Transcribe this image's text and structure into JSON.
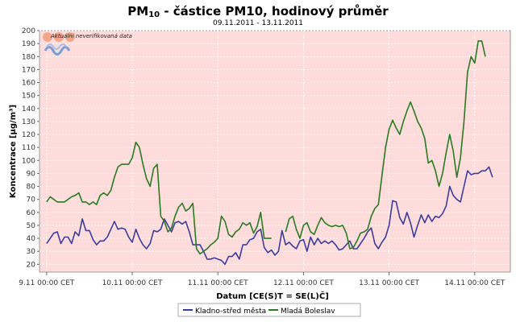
{
  "chart_data": {
    "type": "line",
    "title_main": "PM",
    "title_sub": "10",
    "title_rest": " - částice PM10, hodinový průměr",
    "subtitle": "09.11.2011 - 13.11.2011",
    "xlabel": "Datum [CE(S)T = SE(L)Č]",
    "ylabel": "Koncentrace [µg/m³]",
    "ylim": [
      14,
      200
    ],
    "yticks": [
      20,
      30,
      40,
      50,
      60,
      70,
      80,
      90,
      100,
      110,
      120,
      130,
      140,
      150,
      160,
      170,
      180,
      190,
      200
    ],
    "xlim": [
      -2,
      130
    ],
    "xticks": [
      {
        "hour": 0,
        "label": "9.11 00:00 CET"
      },
      {
        "hour": 24,
        "label": "10.11 00:00 CET"
      },
      {
        "hour": 48,
        "label": "11.11 00:00 CET"
      },
      {
        "hour": 72,
        "label": "12.11 00:00 CET"
      },
      {
        "hour": 96,
        "label": "13.11 00:00 CET"
      },
      {
        "hour": 120,
        "label": "14.11 00:00 CET"
      }
    ],
    "grid": true,
    "background_color": "#ffdcdc",
    "annotation": "Aktuální neverifikovaná data",
    "legend_position": "bottom",
    "series": [
      {
        "name": "Kladno-střed města",
        "color": "#3c3c9a",
        "values": [
          36,
          40,
          44,
          45,
          36,
          41,
          41,
          36,
          45,
          42,
          55,
          46,
          46,
          39,
          35,
          38,
          38,
          41,
          47,
          53,
          47,
          48,
          47,
          41,
          37,
          47,
          40,
          35,
          32,
          36,
          46,
          45,
          47,
          55,
          50,
          45,
          52,
          53,
          51,
          53,
          45,
          35,
          35,
          35,
          30,
          24,
          24,
          25,
          24,
          23,
          20,
          26,
          26,
          29,
          24,
          35,
          35,
          39,
          40,
          45,
          47,
          33,
          29,
          31,
          27,
          30,
          46,
          35,
          37,
          34,
          32,
          38,
          39,
          30,
          41,
          35,
          40,
          36,
          38,
          36,
          38,
          35,
          31,
          32,
          35,
          38,
          32,
          32,
          36,
          40,
          45,
          48,
          36,
          32,
          37,
          41,
          50,
          69,
          68,
          56,
          51,
          60,
          52,
          41,
          50,
          58,
          52,
          58,
          53,
          57,
          56,
          59,
          65,
          80,
          73,
          70,
          68,
          80,
          92,
          89,
          90,
          90,
          92,
          92,
          95,
          87
        ],
        "gaps": []
      },
      {
        "name": "Mladá Boleslav",
        "color": "#2a7a1f",
        "values": [
          68,
          72,
          70,
          68,
          68,
          68,
          70,
          72,
          73,
          75,
          68,
          68,
          66,
          68,
          66,
          73,
          75,
          73,
          77,
          87,
          95,
          97,
          97,
          97,
          102,
          114,
          110,
          97,
          86,
          80,
          94,
          97,
          57,
          53,
          45,
          48,
          57,
          64,
          67,
          61,
          63,
          67,
          32,
          28,
          30,
          32,
          35,
          37,
          40,
          57,
          53,
          43,
          41,
          45,
          47,
          52,
          50,
          52,
          44,
          49,
          60,
          40,
          40,
          40,
          41,
          41,
          41,
          45,
          55,
          57,
          47,
          40,
          50,
          52,
          45,
          43,
          50,
          56,
          52,
          50,
          49,
          50,
          49,
          50,
          44,
          32,
          33,
          38,
          44,
          45,
          47,
          57,
          63,
          66,
          88,
          110,
          124,
          131,
          125,
          120,
          130,
          138,
          145,
          138,
          130,
          125,
          117,
          98,
          100,
          92,
          80,
          90,
          106,
          120,
          107,
          87,
          102,
          130,
          168,
          180,
          175,
          192,
          192,
          180
        ],
        "gaps": [
          [
            64,
            66
          ]
        ]
      }
    ]
  }
}
